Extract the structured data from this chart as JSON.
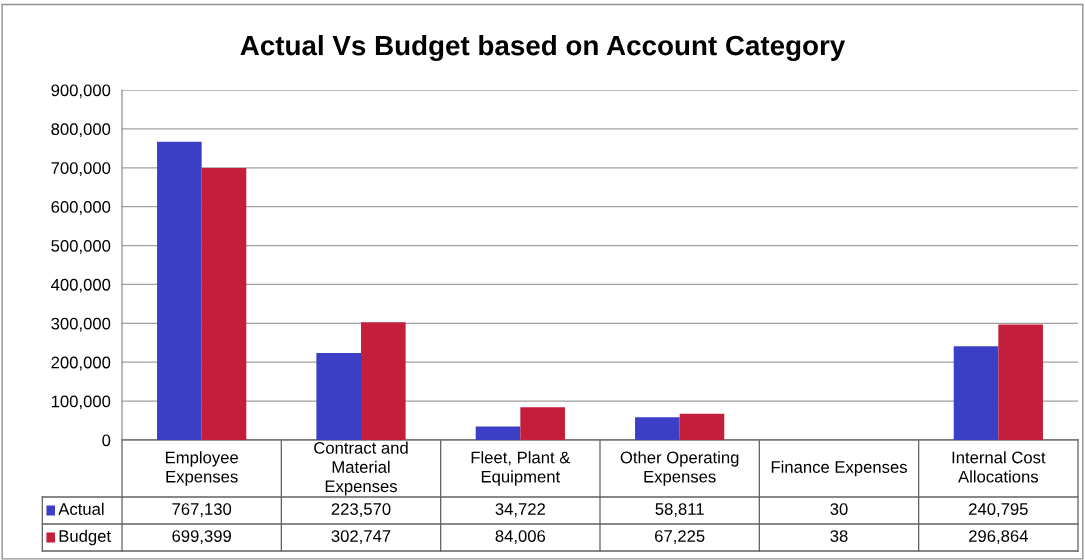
{
  "chart_data": {
    "type": "bar",
    "title": "Actual Vs Budget based on Account Category",
    "categories": [
      "Employee Expenses",
      "Contract and Material Expenses",
      "Fleet, Plant & Equipment",
      "Other Operating Expenses",
      "Finance Expenses",
      "Internal Cost Allocations"
    ],
    "series": [
      {
        "name": "Actual",
        "color": "#3b3fc6",
        "values": [
          767130,
          223570,
          34722,
          58811,
          30,
          240795
        ],
        "value_labels": [
          "767,130",
          "223,570",
          "34,722",
          "58,811",
          "30",
          "240,795"
        ]
      },
      {
        "name": "Budget",
        "color": "#c41e3a",
        "values": [
          699399,
          302747,
          84006,
          67225,
          38,
          296864
        ],
        "value_labels": [
          "699,399",
          "302,747",
          "84,006",
          "67,225",
          "38",
          "296,864"
        ]
      }
    ],
    "ylim": [
      0,
      900000
    ],
    "yticks": [
      0,
      {
        "value": 100000,
        "label": "100,000"
      },
      {
        "value": 200000,
        "label": "200,000"
      },
      {
        "value": 300000,
        "label": "300,000"
      },
      {
        "value": 400000,
        "label": "400,000"
      },
      {
        "value": 500000,
        "label": "500,000"
      },
      {
        "value": 600000,
        "label": "600,000"
      },
      {
        "value": 700000,
        "label": "700,000"
      },
      {
        "value": 800000,
        "label": "800,000"
      },
      {
        "value": 900000,
        "label": "900,000"
      }
    ],
    "grid": "y",
    "legend": "bottom left"
  }
}
